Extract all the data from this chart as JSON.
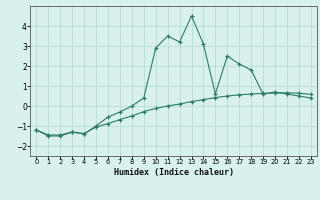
{
  "xlabel": "Humidex (Indice chaleur)",
  "x": [
    0,
    1,
    2,
    3,
    4,
    5,
    6,
    7,
    8,
    9,
    10,
    11,
    12,
    13,
    14,
    15,
    16,
    17,
    18,
    19,
    20,
    21,
    22,
    23
  ],
  "line1": [
    -1.2,
    -1.5,
    -1.5,
    -1.3,
    -1.4,
    -1.0,
    -0.55,
    -0.3,
    0.0,
    0.4,
    2.9,
    3.5,
    3.2,
    4.5,
    3.1,
    0.6,
    2.5,
    2.1,
    1.8,
    0.6,
    0.7,
    0.6,
    0.5,
    0.4
  ],
  "line2": [
    -1.2,
    -1.45,
    -1.45,
    -1.3,
    -1.38,
    -1.05,
    -0.88,
    -0.68,
    -0.5,
    -0.28,
    -0.12,
    0.0,
    0.1,
    0.22,
    0.32,
    0.42,
    0.5,
    0.56,
    0.6,
    0.63,
    0.65,
    0.66,
    0.64,
    0.58
  ],
  "line_color": "#2d7a68",
  "bg_color": "#d8f0ee",
  "grid_color": "#b0d8d4",
  "ylim": [
    -2.5,
    5.0
  ],
  "xlim": [
    -0.5,
    23.5
  ],
  "yticks": [
    -2,
    -1,
    0,
    1,
    2,
    3,
    4
  ],
  "xticks": [
    0,
    1,
    2,
    3,
    4,
    5,
    6,
    7,
    8,
    9,
    10,
    11,
    12,
    13,
    14,
    15,
    16,
    17,
    18,
    19,
    20,
    21,
    22,
    23
  ]
}
